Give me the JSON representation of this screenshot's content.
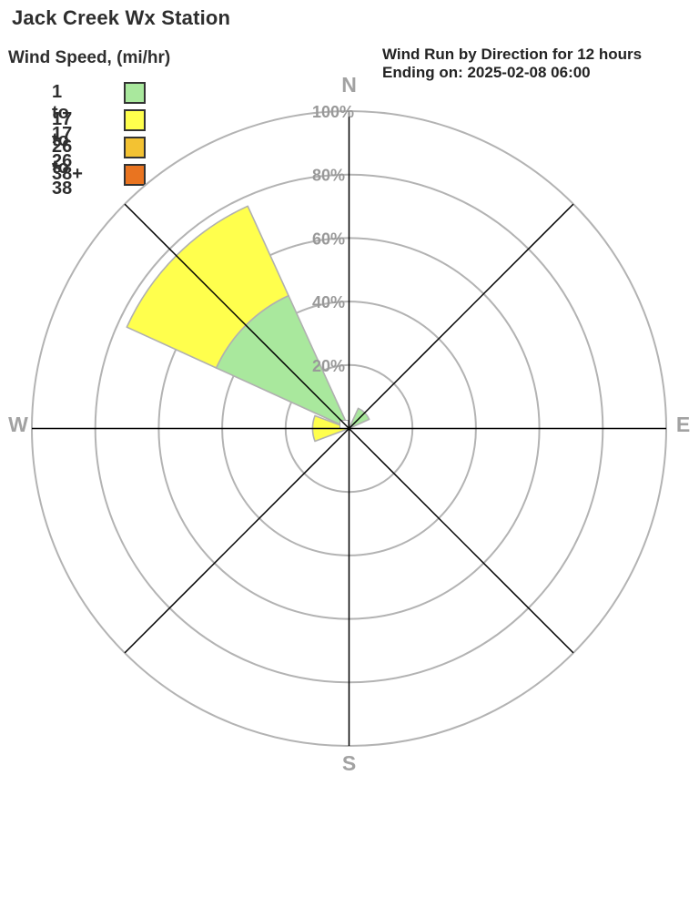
{
  "header": {
    "title": "Jack Creek Wx Station",
    "legend_title": "Wind Speed, (mi/hr)",
    "chart_title_line1": "Wind Run by Direction for 12 hours",
    "chart_title_line2": "Ending on: 2025-02-08 06:00"
  },
  "legend": {
    "items": [
      {
        "label": "1 to 17",
        "color": "#a9e89d"
      },
      {
        "label": "17 to 26",
        "color": "#ffff4d"
      },
      {
        "label": "26 to 38",
        "color": "#f3c232"
      },
      {
        "label": "38+",
        "color": "#e97420"
      }
    ]
  },
  "chart_data": {
    "type": "wind-rose stacked polar bar",
    "title": "Wind Run by Direction for 12 hours",
    "subtitle": "Ending on: 2025-02-08 06:00",
    "units": "percent of wind run",
    "directions": [
      "N",
      "NE",
      "E",
      "SE",
      "S",
      "SW",
      "W",
      "NW"
    ],
    "direction_angles_deg": [
      0,
      45,
      90,
      135,
      180,
      225,
      270,
      315
    ],
    "series": [
      {
        "name": "1 to 17",
        "color": "#a9e89d",
        "values": [
          0,
          7,
          0,
          0,
          0,
          0,
          0,
          46
        ]
      },
      {
        "name": "17 to 26",
        "color": "#ffff4d",
        "values": [
          0,
          0,
          0,
          0,
          0,
          0,
          11.5,
          31
        ]
      },
      {
        "name": "26 to 38",
        "color": "#f3c232",
        "values": [
          0,
          0,
          0,
          0,
          0,
          0,
          0,
          0
        ]
      },
      {
        "name": "38+",
        "color": "#e97420",
        "values": [
          0,
          0,
          0,
          0,
          0,
          0,
          0,
          0
        ]
      }
    ],
    "ring_percents": [
      20,
      40,
      60,
      80,
      100
    ],
    "ring_labels": [
      "20%",
      "40%",
      "60%",
      "80%",
      "100%"
    ],
    "compass_labels": {
      "north": "N",
      "east": "E",
      "south": "S",
      "west": "W"
    },
    "rmax_percent": 100,
    "sector_span_deg": 41,
    "grid": true,
    "colors": {
      "grid_ring": "#b3b3b3",
      "axis_line": "#000000",
      "wedge_outline": "#b0b0b0",
      "ring_label": "#999999",
      "compass_label": "#a2a2a2",
      "hub_fill": "#ffffff",
      "hub_stroke": "#aaaaaa"
    }
  }
}
